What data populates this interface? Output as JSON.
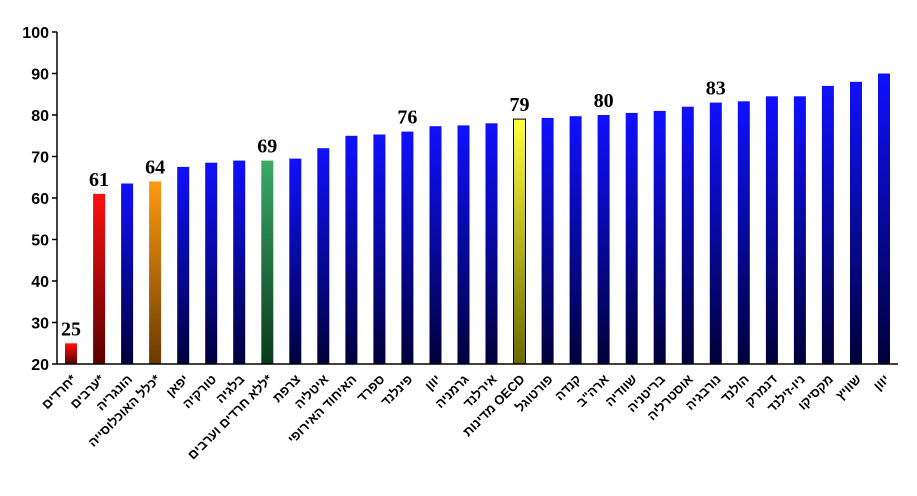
{
  "chart_data": {
    "type": "bar",
    "categories": [
      "חרדים*",
      "ערבים*",
      "הונגריה",
      "כלל האוכלוסייה*",
      "יפאן",
      "טורקיה",
      "בלגיה",
      "ללא חרדים וערבים*",
      "צרפת",
      "איטליה",
      "האיחוד האירופי",
      "ספרד",
      "פינלנד",
      "יוון",
      "גרמניה",
      "אירלנד",
      "מדינות OECD",
      "פורטוגל",
      "קנדה",
      "ארה\"ב",
      "שוודיה",
      "בריטניה",
      "אוסטרליה",
      "נורבגיה",
      "הולנד",
      "דנמרק",
      "ניו-זילנד",
      "מקסיקו",
      "שוויץ",
      "יוון"
    ],
    "values": [
      25,
      61,
      63.5,
      64,
      67.5,
      68.5,
      69,
      69,
      69.5,
      72,
      75,
      75.3,
      76,
      77.3,
      77.5,
      78,
      79,
      79.3,
      79.7,
      80,
      80.5,
      81,
      82,
      83,
      83.3,
      84.5,
      84.5,
      87,
      88,
      90
    ],
    "data_labels": [
      "25",
      "61",
      "",
      "64",
      "",
      "",
      "",
      "69",
      "",
      "",
      "",
      "",
      "76",
      "",
      "",
      "",
      "79",
      "",
      "",
      "80",
      "",
      "",
      "",
      "83",
      "",
      "",
      "",
      "",
      "",
      ""
    ],
    "bar_colors": [
      "red",
      "red",
      "blue",
      "orange",
      "blue",
      "blue",
      "blue",
      "green",
      "blue",
      "blue",
      "blue",
      "blue",
      "blue",
      "blue",
      "blue",
      "blue",
      "yellow",
      "blue",
      "blue",
      "blue",
      "blue",
      "blue",
      "blue",
      "blue",
      "blue",
      "blue",
      "blue",
      "blue",
      "blue",
      "blue"
    ],
    "gradients": {
      "blue": [
        "#1010ff",
        "#00003a"
      ],
      "red": [
        "#ff1010",
        "#5a0000"
      ],
      "orange": [
        "#ff9a10",
        "#6a3a00"
      ],
      "green": [
        "#3aaa6a",
        "#0a3a1a"
      ],
      "yellow": [
        "#ffff40",
        "#6a6a00"
      ]
    },
    "yticks": [
      "20",
      "30",
      "40",
      "50",
      "60",
      "70",
      "80",
      "90",
      "100"
    ],
    "ylim": [
      20,
      100
    ],
    "grid": false,
    "legend": "none",
    "title": "",
    "xlabel": "",
    "ylabel": ""
  }
}
